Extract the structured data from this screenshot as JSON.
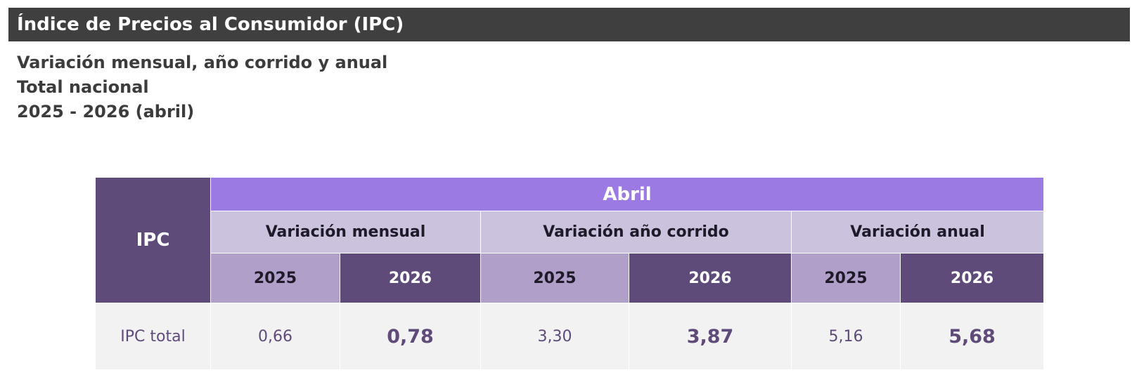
{
  "header": {
    "title": "Índice de Precios al Consumidor (IPC)"
  },
  "subtitle": {
    "line1": "Variación mensual, año corrido y anual",
    "line2": "Total nacional",
    "line3": "2025 - 2026 (abril)"
  },
  "table": {
    "row_header": "IPC",
    "month": "Abril",
    "groups": [
      {
        "label": "Variación mensual",
        "years": [
          "2025",
          "2026"
        ]
      },
      {
        "label": "Variación año corrido",
        "years": [
          "2025",
          "2026"
        ]
      },
      {
        "label": "Variación anual",
        "years": [
          "2025",
          "2026"
        ]
      }
    ],
    "rows": [
      {
        "label": "IPC total",
        "values": [
          "0,66",
          "0,78",
          "3,30",
          "3,87",
          "5,16",
          "5,68"
        ]
      }
    ]
  },
  "colors": {
    "title_bar": "#3f3f3f",
    "header_dark_purple": "#5f4b7a",
    "header_month_purple": "#9c7ae4",
    "header_group_lavender": "#cbc2dd",
    "header_year_light": "#b09fc8",
    "data_row_bg": "#f2f2f2"
  }
}
